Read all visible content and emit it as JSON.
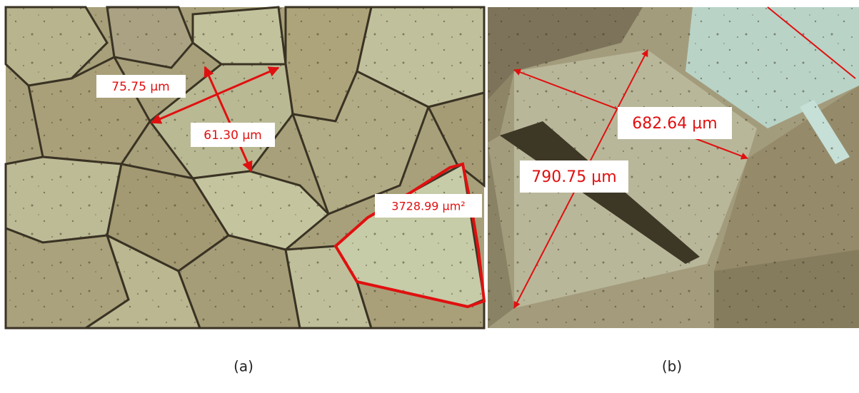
{
  "panels": [
    {
      "caption": "(a)",
      "labels": [
        "75.75 µm",
        "61.30 µm",
        "3728.99 µm²"
      ]
    },
    {
      "caption": "(b)",
      "labels": [
        "682.64 µm",
        "790.75 µm"
      ]
    }
  ]
}
